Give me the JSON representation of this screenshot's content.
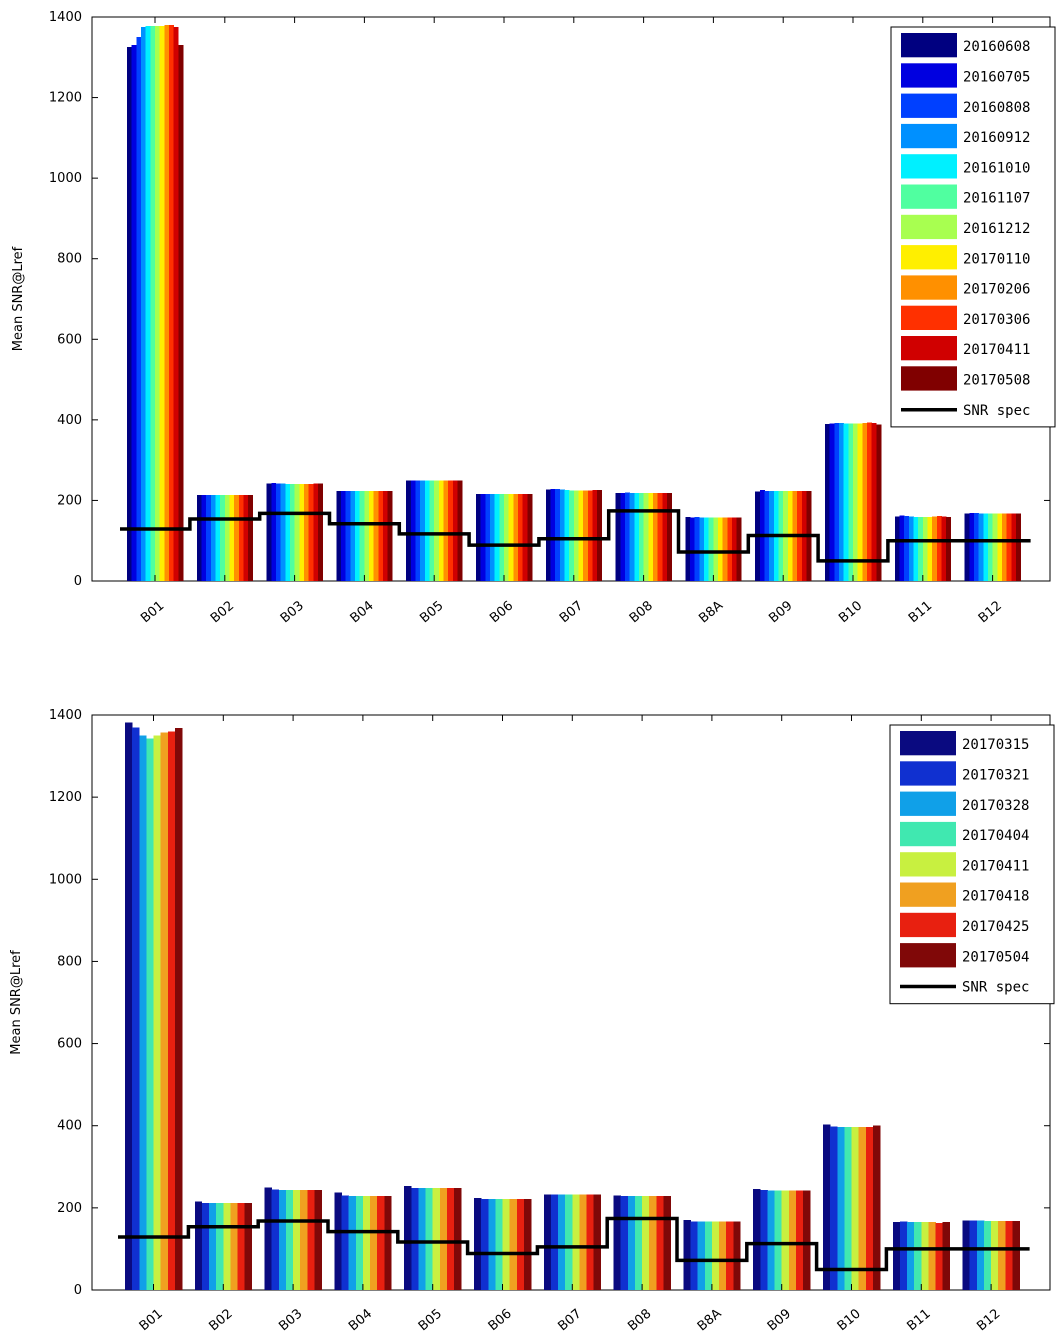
{
  "chart_data": [
    {
      "type": "bar",
      "ylabel": "Mean SNR@Lref",
      "ylim": [
        0,
        1400
      ],
      "yticks": [
        0,
        200,
        400,
        600,
        800,
        1000,
        1200,
        1400
      ],
      "categories": [
        "B01",
        "B02",
        "B03",
        "B04",
        "B05",
        "B06",
        "B07",
        "B08",
        "B8A",
        "B09",
        "B10",
        "B11",
        "B12"
      ],
      "legend_position": "top-right",
      "series": [
        {
          "name": "20160608",
          "color": "#000080",
          "values": [
            1325,
            213,
            242,
            223,
            249,
            216,
            227,
            219,
            159,
            222,
            390,
            160,
            168
          ]
        },
        {
          "name": "20160705",
          "color": "#0000e0",
          "values": [
            1330,
            213,
            243,
            224,
            249,
            216,
            228,
            219,
            158,
            226,
            391,
            162,
            169
          ]
        },
        {
          "name": "20160808",
          "color": "#0040ff",
          "values": [
            1350,
            213,
            242,
            223,
            249,
            216,
            228,
            220,
            159,
            224,
            392,
            161,
            169
          ]
        },
        {
          "name": "20160912",
          "color": "#0090ff",
          "values": [
            1375,
            213,
            242,
            223,
            249,
            216,
            227,
            219,
            158,
            224,
            392,
            160,
            168
          ]
        },
        {
          "name": "20161010",
          "color": "#00f0ff",
          "values": [
            1378,
            213,
            241,
            223,
            249,
            216,
            226,
            219,
            158,
            224,
            391,
            159,
            168
          ]
        },
        {
          "name": "20161107",
          "color": "#50ffa0",
          "values": [
            1378,
            213,
            241,
            223,
            249,
            216,
            225,
            219,
            158,
            224,
            391,
            159,
            168
          ]
        },
        {
          "name": "20161212",
          "color": "#a8ff50",
          "values": [
            1378,
            213,
            241,
            223,
            249,
            216,
            225,
            219,
            158,
            224,
            391,
            159,
            168
          ]
        },
        {
          "name": "20170110",
          "color": "#ffef00",
          "values": [
            1378,
            213,
            241,
            223,
            249,
            216,
            225,
            219,
            158,
            224,
            391,
            159,
            168
          ]
        },
        {
          "name": "20170206",
          "color": "#ff9000",
          "values": [
            1380,
            213,
            241,
            223,
            249,
            216,
            225,
            219,
            158,
            224,
            392,
            160,
            168
          ]
        },
        {
          "name": "20170306",
          "color": "#ff3000",
          "values": [
            1380,
            213,
            241,
            224,
            249,
            216,
            225,
            219,
            158,
            224,
            393,
            161,
            168
          ]
        },
        {
          "name": "20170411",
          "color": "#d00000",
          "values": [
            1375,
            213,
            242,
            224,
            249,
            216,
            226,
            219,
            158,
            224,
            392,
            160,
            168
          ]
        },
        {
          "name": "20170508",
          "color": "#800000",
          "values": [
            1330,
            213,
            242,
            223,
            249,
            216,
            226,
            219,
            158,
            224,
            389,
            159,
            168
          ]
        }
      ],
      "snr_spec": {
        "name": "SNR spec",
        "values": [
          129,
          154,
          168,
          142,
          117,
          89,
          105,
          174,
          72,
          113,
          50,
          100,
          100
        ]
      }
    },
    {
      "type": "bar",
      "ylabel": "Mean SNR@Lref",
      "ylim": [
        0,
        1400
      ],
      "yticks": [
        0,
        200,
        400,
        600,
        800,
        1000,
        1200,
        1400
      ],
      "categories": [
        "B01",
        "B02",
        "B03",
        "B04",
        "B05",
        "B06",
        "B07",
        "B08",
        "B8A",
        "B09",
        "B10",
        "B11",
        "B12"
      ],
      "legend_position": "top-right",
      "series": [
        {
          "name": "20170315",
          "color": "#0a0a80",
          "values": [
            1382,
            216,
            250,
            238,
            253,
            224,
            233,
            230,
            170,
            246,
            403,
            166,
            169
          ]
        },
        {
          "name": "20170321",
          "color": "#1030d0",
          "values": [
            1370,
            212,
            245,
            230,
            248,
            222,
            232,
            229,
            167,
            243,
            398,
            167,
            169
          ]
        },
        {
          "name": "20170328",
          "color": "#10a0e8",
          "values": [
            1350,
            212,
            243,
            229,
            248,
            221,
            232,
            229,
            167,
            242,
            397,
            166,
            169
          ]
        },
        {
          "name": "20170404",
          "color": "#40e8b0",
          "values": [
            1343,
            212,
            243,
            229,
            248,
            221,
            232,
            229,
            167,
            242,
            397,
            165,
            168
          ]
        },
        {
          "name": "20170411",
          "color": "#c8f040",
          "values": [
            1350,
            212,
            243,
            229,
            248,
            221,
            232,
            229,
            167,
            242,
            397,
            166,
            168
          ]
        },
        {
          "name": "20170418",
          "color": "#f0a020",
          "values": [
            1358,
            212,
            243,
            229,
            248,
            221,
            232,
            229,
            167,
            242,
            397,
            166,
            168
          ]
        },
        {
          "name": "20170425",
          "color": "#e82010",
          "values": [
            1360,
            212,
            243,
            229,
            248,
            221,
            232,
            229,
            167,
            242,
            397,
            163,
            168
          ]
        },
        {
          "name": "20170504",
          "color": "#800808",
          "values": [
            1368,
            212,
            243,
            229,
            248,
            221,
            232,
            229,
            167,
            242,
            400,
            166,
            168
          ]
        }
      ],
      "snr_spec": {
        "name": "SNR spec",
        "values": [
          129,
          154,
          168,
          142,
          117,
          89,
          105,
          174,
          72,
          113,
          50,
          100,
          100
        ]
      }
    }
  ]
}
